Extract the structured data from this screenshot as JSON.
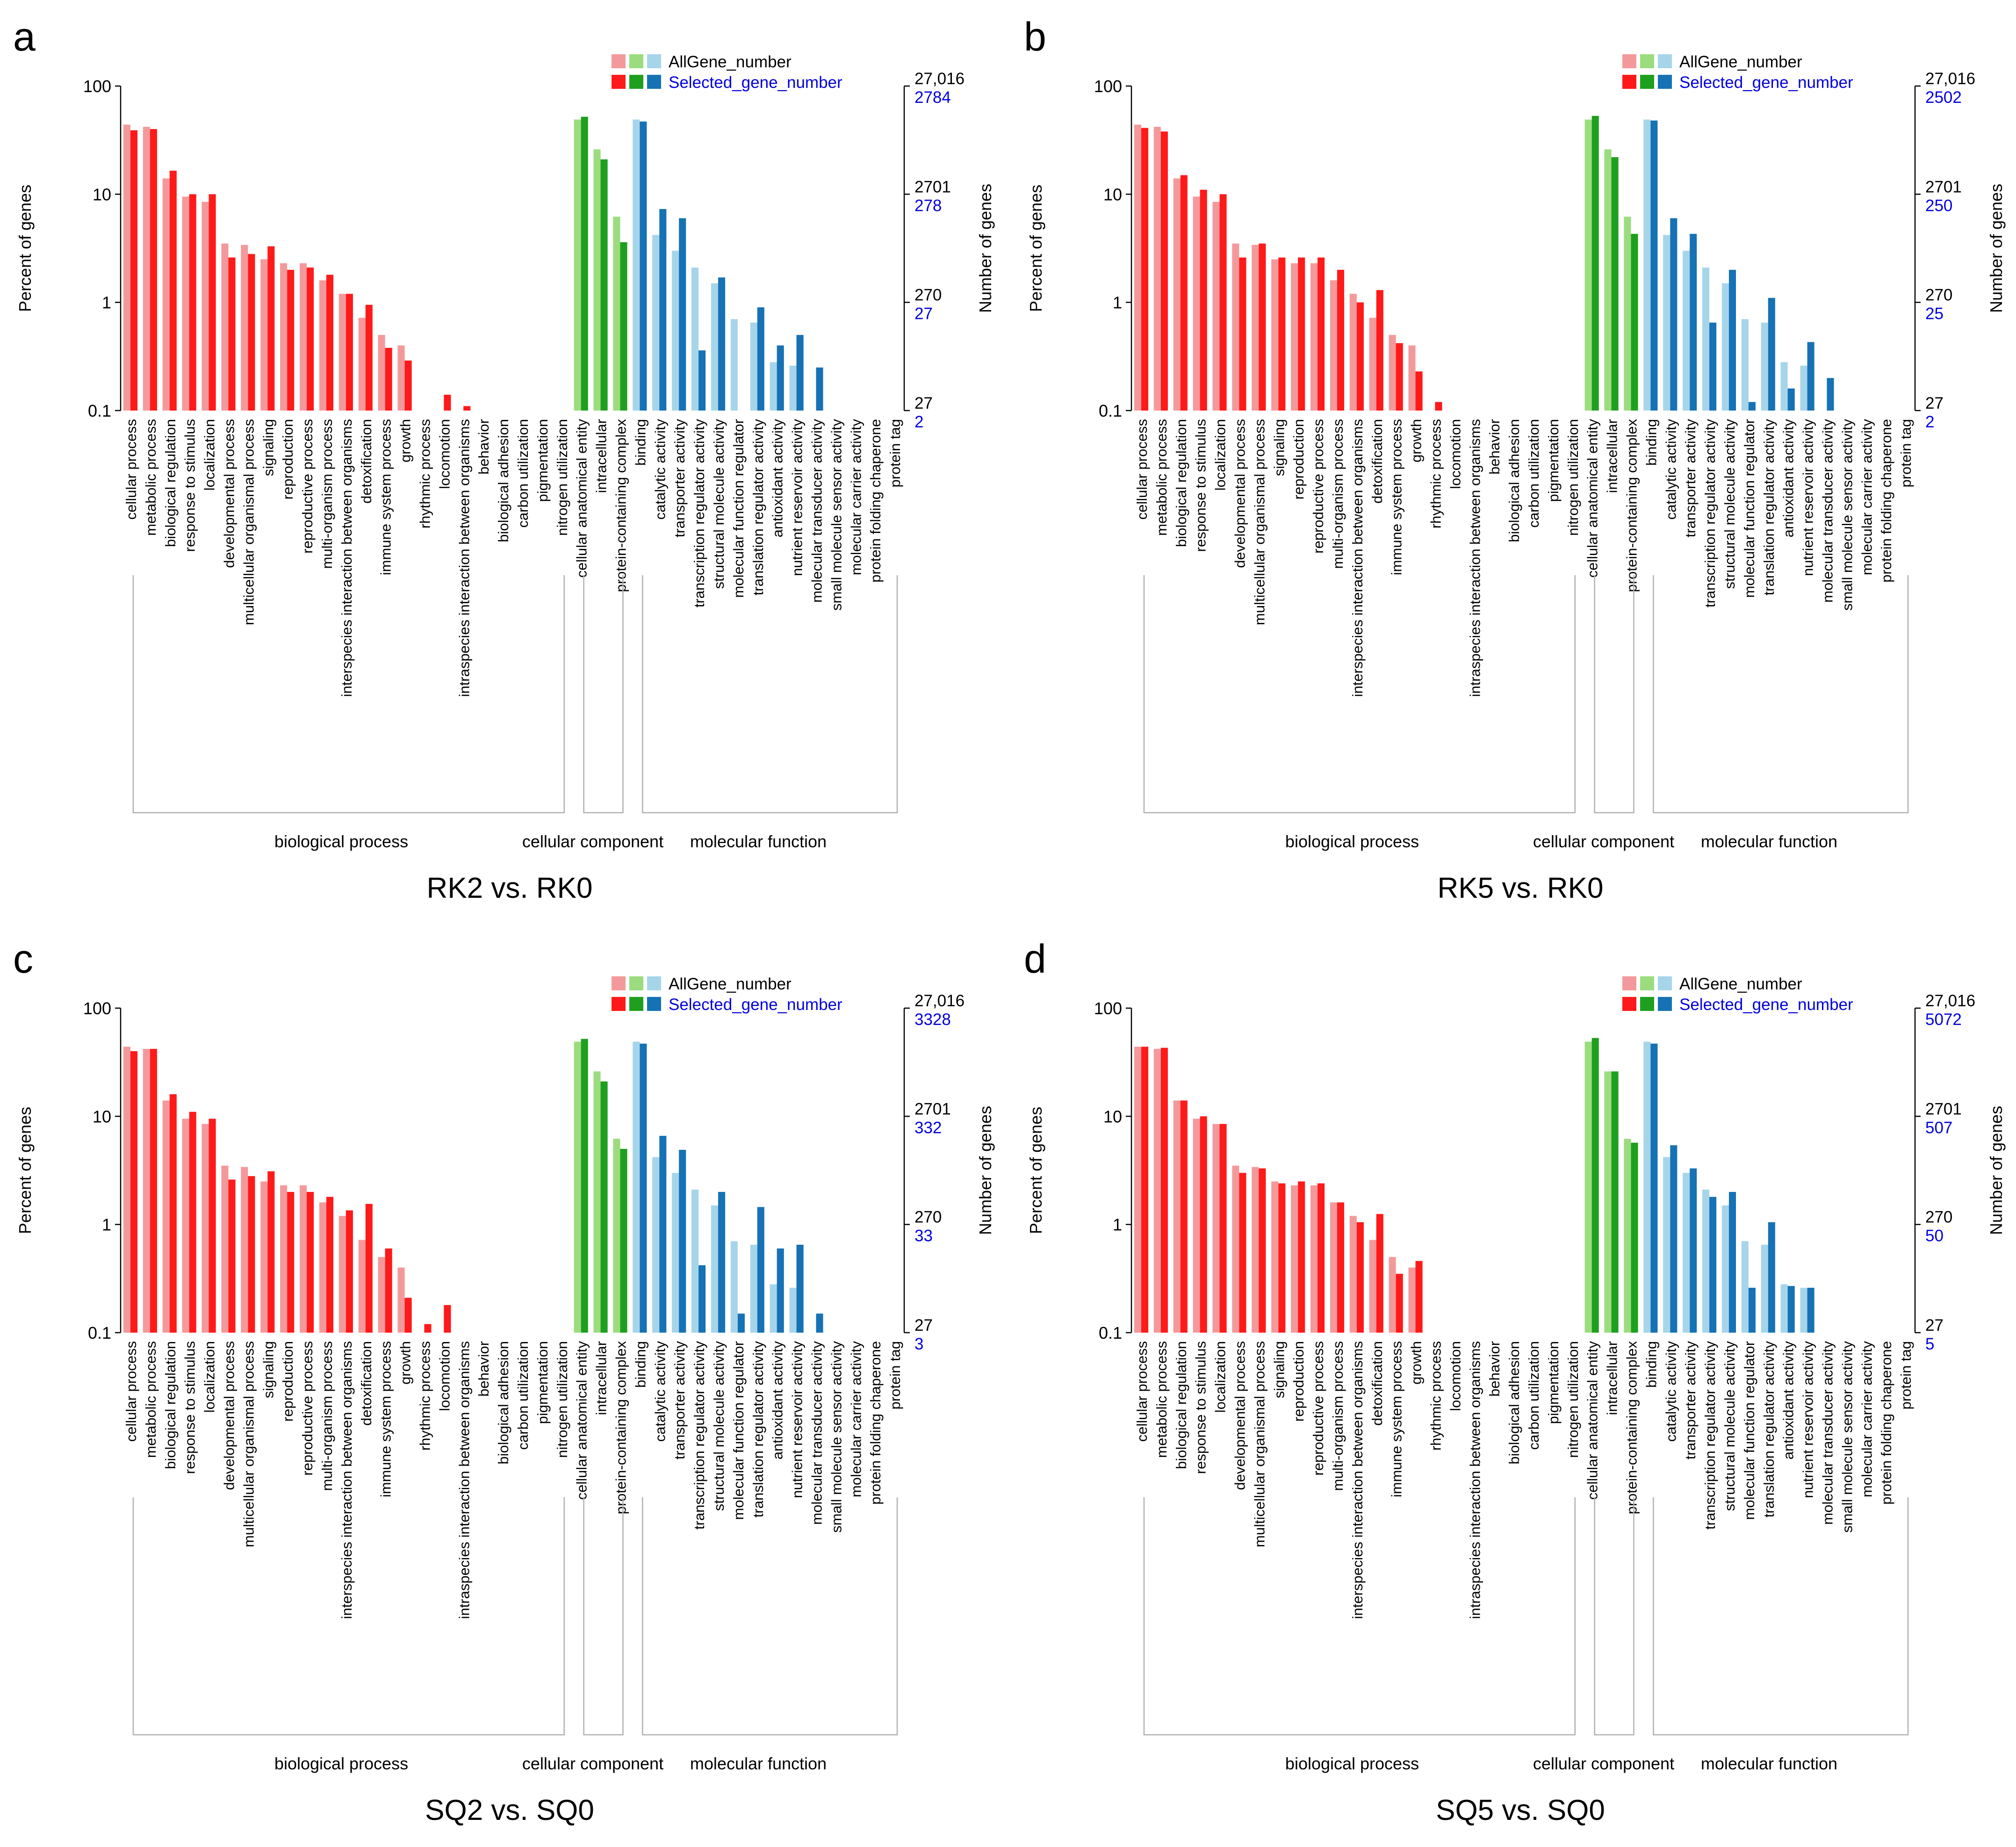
{
  "figure": {
    "categories": {
      "bp": [
        "cellular process",
        "metabolic process",
        "biological regulation",
        "response to stimulus",
        "localization",
        "developmental process",
        "multicellular organismal process",
        "signaling",
        "reproduction",
        "reproductive process",
        "multi-organism process",
        "interspecies interaction between organisms",
        "detoxification",
        "immune system process",
        "growth",
        "rhythmic process",
        "locomotion",
        "intraspecies interaction between organisms",
        "behavior",
        "biological adhesion",
        "carbon utilization",
        "pigmentation",
        "nitrogen utilization"
      ],
      "cc": [
        "cellular anatomical entity",
        "intracellular",
        "protein-containing complex"
      ],
      "mf": [
        "binding",
        "catalytic activity",
        "transporter activity",
        "transcription regulator activity",
        "structural molecule activity",
        "molecular function regulator",
        "translation regulator activity",
        "antioxidant activity",
        "nutrient reservoir activity",
        "molecular transducer activity",
        "small molecule sensor activity",
        "molecular carrier activity",
        "protein folding chaperone",
        "protein tag"
      ]
    },
    "group_labels": {
      "bp": "biological process",
      "cc": "cellular component",
      "mf": "molecular function"
    },
    "y_axis_left_label": "Percent of genes",
    "y_axis_right_label": "Number of genes",
    "legend": {
      "all": "AllGene_number",
      "selected": "Selected_gene_number"
    },
    "colors": {
      "bp_all": "#f4999b",
      "bp_sel": "#ff1a1a",
      "cc_all": "#9bdc7e",
      "cc_sel": "#1ea01e",
      "mf_all": "#a6d5ea",
      "mf_sel": "#1672b5",
      "right_selected_text": "#0000dd",
      "axis": "#000000",
      "bracket": "#b0b0b0"
    }
  },
  "chart_data": [
    {
      "type": "bar",
      "panel": "a",
      "title": "RK2 vs. RK0",
      "yscale": "log",
      "ylim": [
        0.1,
        100
      ],
      "left_ticks": [
        "100",
        "10",
        "1",
        "0.1"
      ],
      "right_all_ticks": [
        "27,016",
        "2701",
        "270",
        "27"
      ],
      "right_selected_ticks": [
        "2784",
        "278",
        "27",
        "2"
      ],
      "all_values": [
        44,
        42,
        14,
        9.5,
        8.5,
        3.5,
        3.4,
        2.5,
        2.3,
        2.3,
        1.6,
        1.2,
        0.72,
        0.5,
        0.4,
        0.1,
        0,
        0,
        0,
        0,
        0,
        0,
        0,
        49,
        26,
        6.2,
        49,
        4.2,
        3.0,
        2.1,
        1.5,
        0.7,
        0.65,
        0.28,
        0.26,
        0.1,
        0,
        0,
        0,
        0
      ],
      "selected_values": [
        39,
        40,
        16.5,
        10,
        10,
        2.6,
        2.8,
        3.3,
        2.0,
        2.1,
        1.8,
        1.2,
        0.95,
        0.38,
        0.29,
        0,
        0.14,
        0.11,
        0,
        0,
        0,
        0,
        0,
        52,
        21,
        3.6,
        47,
        7.3,
        6.0,
        0.36,
        1.7,
        0,
        0.9,
        0.4,
        0.5,
        0.25,
        0,
        0,
        0,
        0
      ]
    },
    {
      "type": "bar",
      "panel": "b",
      "title": "RK5 vs. RK0",
      "yscale": "log",
      "ylim": [
        0.1,
        100
      ],
      "left_ticks": [
        "100",
        "10",
        "1",
        "0.1"
      ],
      "right_all_ticks": [
        "27,016",
        "2701",
        "270",
        "27"
      ],
      "right_selected_ticks": [
        "2502",
        "250",
        "25",
        "2"
      ],
      "all_values": [
        44,
        42,
        14,
        9.5,
        8.5,
        3.5,
        3.4,
        2.5,
        2.3,
        2.3,
        1.6,
        1.2,
        0.72,
        0.5,
        0.4,
        0.1,
        0,
        0,
        0,
        0,
        0,
        0,
        0,
        49,
        26,
        6.2,
        49,
        4.2,
        3.0,
        2.1,
        1.5,
        0.7,
        0.65,
        0.28,
        0.26,
        0.1,
        0,
        0,
        0,
        0
      ],
      "selected_values": [
        41,
        38,
        15,
        11,
        10,
        2.6,
        3.5,
        2.6,
        2.6,
        2.6,
        2.0,
        1.0,
        1.3,
        0.42,
        0.23,
        0.12,
        0,
        0,
        0,
        0,
        0,
        0,
        0,
        53,
        22,
        4.3,
        48,
        6.0,
        4.3,
        0.65,
        2.0,
        0.12,
        1.1,
        0.16,
        0.43,
        0.2,
        0,
        0,
        0,
        0
      ]
    },
    {
      "type": "bar",
      "panel": "c",
      "title": "SQ2 vs. SQ0",
      "yscale": "log",
      "ylim": [
        0.1,
        100
      ],
      "left_ticks": [
        "100",
        "10",
        "1",
        "0.1"
      ],
      "right_all_ticks": [
        "27,016",
        "2701",
        "270",
        "27"
      ],
      "right_selected_ticks": [
        "3328",
        "332",
        "33",
        "3"
      ],
      "all_values": [
        44,
        42,
        14,
        9.5,
        8.5,
        3.5,
        3.4,
        2.5,
        2.3,
        2.3,
        1.6,
        1.2,
        0.72,
        0.5,
        0.4,
        0.1,
        0,
        0,
        0,
        0,
        0,
        0,
        0,
        49,
        26,
        6.2,
        49,
        4.2,
        3.0,
        2.1,
        1.5,
        0.7,
        0.65,
        0.28,
        0.26,
        0.1,
        0,
        0,
        0,
        0
      ],
      "selected_values": [
        40,
        42,
        16,
        11,
        9.5,
        2.6,
        2.8,
        3.1,
        2.0,
        2.0,
        1.8,
        1.35,
        1.55,
        0.6,
        0.21,
        0.12,
        0.18,
        0,
        0,
        0,
        0,
        0,
        0,
        52,
        21,
        5.0,
        47,
        6.6,
        4.9,
        0.42,
        2.0,
        0.15,
        1.45,
        0.6,
        0.65,
        0.15,
        0,
        0,
        0,
        0
      ]
    },
    {
      "type": "bar",
      "panel": "d",
      "title": "SQ5 vs. SQ0",
      "yscale": "log",
      "ylim": [
        0.1,
        100
      ],
      "left_ticks": [
        "100",
        "10",
        "1",
        "0.1"
      ],
      "right_all_ticks": [
        "27,016",
        "2701",
        "270",
        "27"
      ],
      "right_selected_ticks": [
        "5072",
        "507",
        "50",
        "5"
      ],
      "all_values": [
        44,
        42,
        14,
        9.5,
        8.5,
        3.5,
        3.4,
        2.5,
        2.3,
        2.3,
        1.6,
        1.2,
        0.72,
        0.5,
        0.4,
        0.1,
        0,
        0,
        0,
        0,
        0,
        0,
        0,
        49,
        26,
        6.2,
        49,
        4.2,
        3.0,
        2.1,
        1.5,
        0.7,
        0.65,
        0.28,
        0.26,
        0.1,
        0,
        0,
        0,
        0
      ],
      "selected_values": [
        44,
        43,
        14,
        10,
        8.5,
        3.0,
        3.3,
        2.4,
        2.5,
        2.4,
        1.6,
        1.05,
        1.25,
        0.35,
        0.46,
        0,
        0,
        0,
        0,
        0,
        0,
        0,
        0,
        53,
        26,
        5.7,
        47,
        5.4,
        3.3,
        1.8,
        2.0,
        0.26,
        1.05,
        0.27,
        0.26,
        0,
        0,
        0,
        0,
        0
      ]
    }
  ]
}
